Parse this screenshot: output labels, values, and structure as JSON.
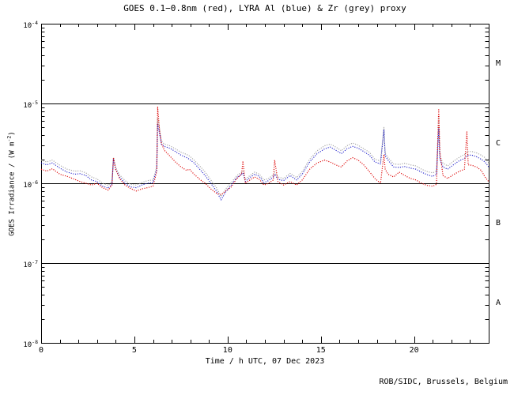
{
  "title": "GOES 0.1−0.8nm (red), LYRA Al (blue) & Zr (grey) proxy",
  "footer": "ROB/SIDC, Brussels, Belgium",
  "colors": {
    "background": "#ffffff",
    "axis": "#000000",
    "red": "#dd0000",
    "blue": "#2222cc",
    "grey": "#a2a2a2"
  },
  "chart_data": {
    "type": "line",
    "style": "dotted",
    "title": "GOES 0.1−0.8nm (red), LYRA Al (blue) & Zr (grey) proxy",
    "xlabel": "Time / h UTC, 07 Dec 2023",
    "ylabel_parts": {
      "prefix": "GOES Irradiance / (W m",
      "exp": "-2",
      "suffix": ")"
    },
    "x_range": [
      0,
      24
    ],
    "x_major_ticks": [
      0,
      5,
      10,
      15,
      20
    ],
    "x_minor_step": 1,
    "y_scale": "log",
    "y_range_exponents": [
      -8,
      -4
    ],
    "y_decade_exponents": [
      -4,
      -5,
      -6,
      -7,
      -8
    ],
    "horizontal_lines_exponents": [
      -5,
      -6,
      -7
    ],
    "grid": "decade-lines-only",
    "legend_position": "in-title",
    "flare_classes": [
      {
        "label": "M",
        "center_exponent": -4.5
      },
      {
        "label": "C",
        "center_exponent": -5.5
      },
      {
        "label": "B",
        "center_exponent": -6.5
      },
      {
        "label": "A",
        "center_exponent": -7.5
      }
    ],
    "unit_scale": 1e-06,
    "unit": "W m-2",
    "x": [
      0,
      0.3,
      0.6,
      1.0,
      1.4,
      1.8,
      2.1,
      2.4,
      2.7,
      3.0,
      3.3,
      3.6,
      3.8,
      3.88,
      4.0,
      4.2,
      4.5,
      4.8,
      5.1,
      5.4,
      5.7,
      6.0,
      6.2,
      6.25,
      6.35,
      6.45,
      6.6,
      6.9,
      7.2,
      7.5,
      7.8,
      7.95,
      8.2,
      8.5,
      8.8,
      9.1,
      9.4,
      9.65,
      9.9,
      10.2,
      10.5,
      10.75,
      10.82,
      10.95,
      11.2,
      11.45,
      11.7,
      11.95,
      12.2,
      12.45,
      12.52,
      12.7,
      13.0,
      13.35,
      13.7,
      14.0,
      14.4,
      14.8,
      15.2,
      15.5,
      15.8,
      16.1,
      16.4,
      16.7,
      17.0,
      17.3,
      17.6,
      17.9,
      18.2,
      18.38,
      18.45,
      18.6,
      18.9,
      19.2,
      19.5,
      19.8,
      20.1,
      20.4,
      20.7,
      21.0,
      21.2,
      21.32,
      21.38,
      21.55,
      21.8,
      22.1,
      22.4,
      22.7,
      22.83,
      22.9,
      23.1,
      23.35,
      23.6,
      23.8,
      24.0
    ],
    "series": [
      {
        "name": "LYRA Zr proxy",
        "color_key": "grey",
        "values": [
          1.95,
          1.85,
          1.95,
          1.68,
          1.5,
          1.42,
          1.43,
          1.35,
          1.2,
          1.13,
          1.0,
          0.94,
          1.05,
          2.1,
          1.58,
          1.28,
          1.08,
          0.97,
          0.95,
          1.02,
          1.08,
          1.1,
          1.6,
          6.5,
          4.8,
          3.4,
          3.1,
          2.95,
          2.7,
          2.45,
          2.3,
          2.2,
          1.95,
          1.65,
          1.38,
          1.1,
          0.88,
          0.68,
          0.85,
          1.02,
          1.25,
          1.38,
          1.42,
          1.12,
          1.25,
          1.38,
          1.3,
          1.1,
          1.15,
          1.28,
          1.38,
          1.2,
          1.15,
          1.33,
          1.18,
          1.4,
          2.0,
          2.55,
          2.95,
          3.1,
          2.85,
          2.55,
          2.95,
          3.2,
          3.0,
          2.7,
          2.45,
          2.0,
          1.9,
          5.0,
          2.4,
          2.1,
          1.75,
          1.72,
          1.78,
          1.7,
          1.65,
          1.5,
          1.4,
          1.35,
          1.42,
          6.8,
          2.2,
          1.78,
          1.65,
          1.88,
          2.1,
          2.3,
          2.45,
          2.5,
          2.5,
          2.4,
          2.25,
          2.1,
          1.8
        ]
      },
      {
        "name": "LYRA Al proxy",
        "color_key": "blue",
        "values": [
          1.8,
          1.7,
          1.8,
          1.55,
          1.38,
          1.3,
          1.32,
          1.25,
          1.1,
          1.05,
          0.92,
          0.87,
          0.98,
          2.0,
          1.5,
          1.2,
          1.0,
          0.9,
          0.88,
          0.95,
          1.0,
          1.02,
          1.5,
          5.5,
          4.2,
          3.1,
          2.9,
          2.75,
          2.5,
          2.25,
          2.1,
          2.0,
          1.8,
          1.5,
          1.25,
          1.0,
          0.8,
          0.62,
          0.78,
          0.95,
          1.18,
          1.3,
          1.35,
          1.05,
          1.18,
          1.3,
          1.22,
          1.02,
          1.08,
          1.2,
          1.3,
          1.12,
          1.08,
          1.25,
          1.1,
          1.3,
          1.85,
          2.35,
          2.7,
          2.85,
          2.6,
          2.35,
          2.7,
          2.9,
          2.75,
          2.5,
          2.25,
          1.85,
          1.75,
          4.7,
          2.2,
          1.95,
          1.6,
          1.58,
          1.62,
          1.55,
          1.5,
          1.38,
          1.28,
          1.22,
          1.3,
          4.8,
          2.0,
          1.6,
          1.5,
          1.7,
          1.9,
          2.05,
          2.2,
          2.25,
          2.25,
          2.15,
          2.0,
          1.85,
          1.6
        ]
      },
      {
        "name": "GOES 0.1-0.8nm",
        "color_key": "red",
        "values": [
          1.5,
          1.42,
          1.52,
          1.3,
          1.22,
          1.12,
          1.05,
          1.0,
          0.95,
          1.0,
          0.88,
          0.82,
          0.95,
          2.1,
          1.5,
          1.15,
          0.95,
          0.86,
          0.8,
          0.85,
          0.88,
          0.92,
          1.4,
          9.0,
          4.5,
          3.2,
          2.6,
          2.2,
          1.85,
          1.6,
          1.45,
          1.5,
          1.3,
          1.12,
          1.0,
          0.85,
          0.75,
          0.72,
          0.8,
          0.9,
          1.15,
          1.3,
          1.9,
          1.0,
          1.1,
          1.2,
          1.12,
          0.95,
          1.0,
          1.1,
          1.95,
          1.05,
          0.95,
          1.05,
          0.95,
          1.1,
          1.5,
          1.8,
          1.95,
          1.85,
          1.7,
          1.6,
          1.9,
          2.1,
          1.95,
          1.7,
          1.4,
          1.15,
          1.0,
          2.3,
          1.5,
          1.3,
          1.2,
          1.38,
          1.25,
          1.15,
          1.1,
          1.0,
          0.94,
          0.92,
          0.97,
          8.6,
          2.5,
          1.25,
          1.15,
          1.28,
          1.4,
          1.5,
          4.4,
          1.7,
          1.68,
          1.6,
          1.45,
          1.2,
          1.05
        ]
      }
    ]
  }
}
